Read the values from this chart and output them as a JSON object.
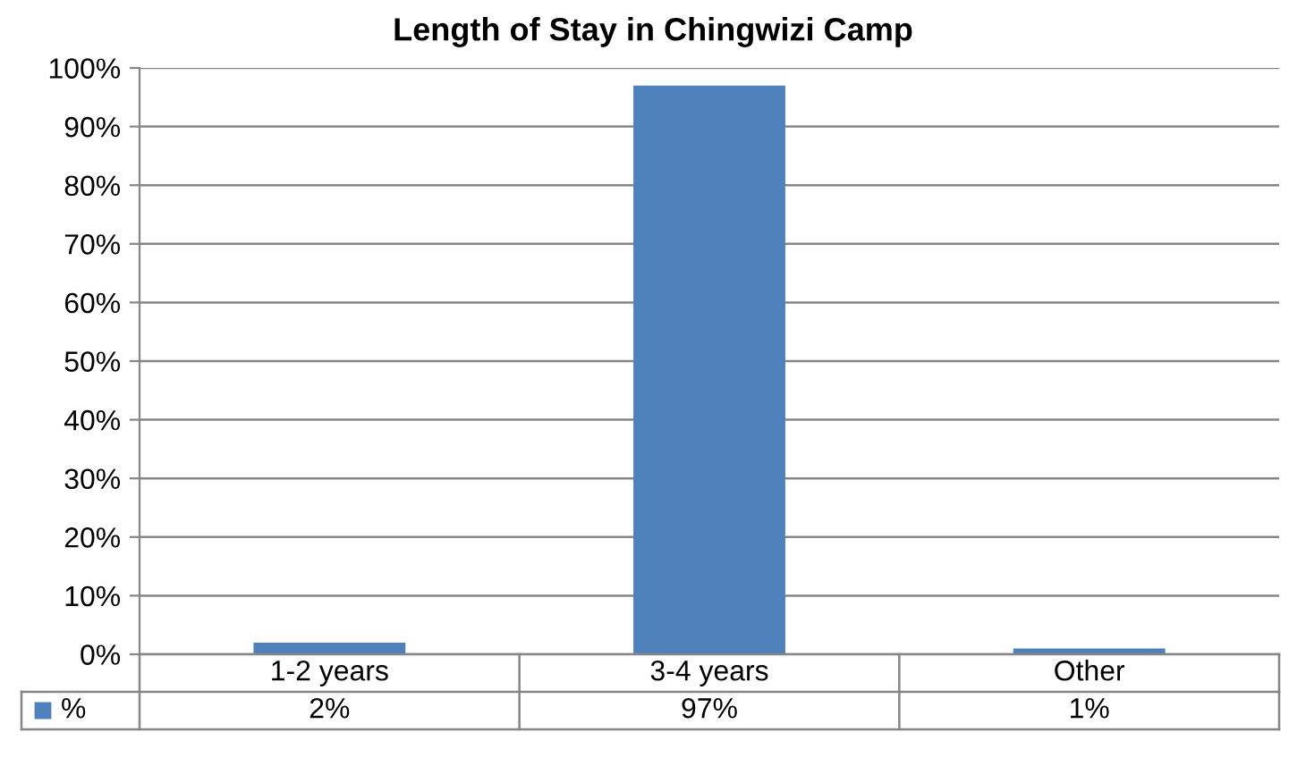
{
  "chart_data": {
    "type": "bar",
    "title": "Length of Stay in Chingwizi Camp",
    "categories": [
      "1-2 years",
      "3-4 years",
      "Other"
    ],
    "series": [
      {
        "name": "%",
        "color": "#4f81bd",
        "values": [
          2,
          97,
          1
        ],
        "value_labels": [
          "2%",
          "97%",
          "1%"
        ]
      }
    ],
    "ylim": [
      0,
      100
    ],
    "yticks": [
      {
        "value": 0,
        "label": "0%"
      },
      {
        "value": 10,
        "label": "10%"
      },
      {
        "value": 20,
        "label": "20%"
      },
      {
        "value": 30,
        "label": "30%"
      },
      {
        "value": 40,
        "label": "40%"
      },
      {
        "value": 50,
        "label": "50%"
      },
      {
        "value": 60,
        "label": "60%"
      },
      {
        "value": 70,
        "label": "70%"
      },
      {
        "value": 80,
        "label": "80%"
      },
      {
        "value": 90,
        "label": "90%"
      },
      {
        "value": 100,
        "label": "100%"
      }
    ],
    "grid": "y",
    "legend": "bottom left"
  }
}
